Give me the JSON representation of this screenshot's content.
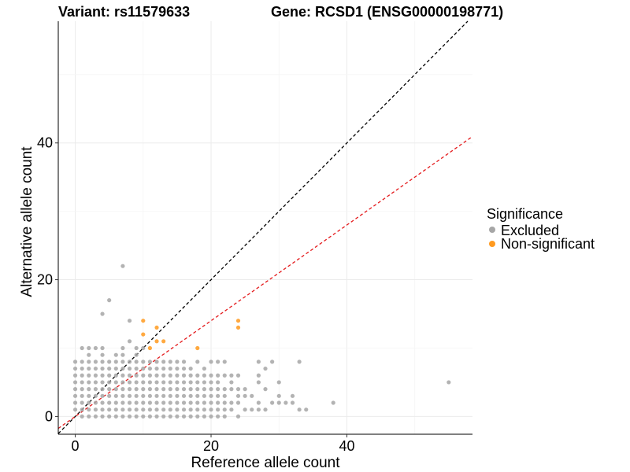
{
  "chart_data": {
    "type": "scatter",
    "title_left": "Variant: rs11579633",
    "title_right": "Gene: RCSD1 (ENSG00000198771)",
    "xlabel": "Reference allele count",
    "ylabel": "Alternative allele count",
    "xlim": [
      -2.5,
      58.5
    ],
    "ylim": [
      -2.6,
      57.8
    ],
    "x_ticks": [
      0,
      20,
      40
    ],
    "y_ticks": [
      0,
      20,
      40
    ],
    "grid": true,
    "legend_position": "right",
    "legend_title": "Significance",
    "reference_lines": [
      {
        "name": "identity",
        "slope": 1,
        "intercept": 0,
        "color": "#000000",
        "dash": "dashed"
      },
      {
        "name": "ratio",
        "slope": 0.7,
        "intercept": 0,
        "color": "#e41a1c",
        "dash": "dashed"
      }
    ],
    "series": [
      {
        "name": "Excluded",
        "color": "#a6a6a6",
        "points": [
          [
            0,
            1
          ],
          [
            0,
            2
          ],
          [
            0,
            3
          ],
          [
            0,
            4
          ],
          [
            0,
            5
          ],
          [
            0,
            6
          ],
          [
            0,
            7
          ],
          [
            0,
            8
          ],
          [
            1,
            0
          ],
          [
            1,
            1
          ],
          [
            1,
            2
          ],
          [
            1,
            3
          ],
          [
            1,
            4
          ],
          [
            1,
            5
          ],
          [
            1,
            6
          ],
          [
            1,
            7
          ],
          [
            1,
            8
          ],
          [
            1,
            10
          ],
          [
            2,
            0
          ],
          [
            2,
            1
          ],
          [
            2,
            2
          ],
          [
            2,
            3
          ],
          [
            2,
            4
          ],
          [
            2,
            5
          ],
          [
            2,
            6
          ],
          [
            2,
            7
          ],
          [
            2,
            8
          ],
          [
            2,
            9
          ],
          [
            2,
            10
          ],
          [
            3,
            0
          ],
          [
            3,
            1
          ],
          [
            3,
            2
          ],
          [
            3,
            3
          ],
          [
            3,
            4
          ],
          [
            3,
            5
          ],
          [
            3,
            6
          ],
          [
            3,
            7
          ],
          [
            3,
            8
          ],
          [
            3,
            10
          ],
          [
            4,
            0
          ],
          [
            4,
            1
          ],
          [
            4,
            2
          ],
          [
            4,
            3
          ],
          [
            4,
            4
          ],
          [
            4,
            5
          ],
          [
            4,
            6
          ],
          [
            4,
            7
          ],
          [
            4,
            8
          ],
          [
            4,
            9
          ],
          [
            4,
            10
          ],
          [
            4,
            15
          ],
          [
            5,
            0
          ],
          [
            5,
            1
          ],
          [
            5,
            2
          ],
          [
            5,
            3
          ],
          [
            5,
            4
          ],
          [
            5,
            5
          ],
          [
            5,
            6
          ],
          [
            5,
            7
          ],
          [
            5,
            8
          ],
          [
            5,
            17
          ],
          [
            6,
            0
          ],
          [
            6,
            1
          ],
          [
            6,
            2
          ],
          [
            6,
            3
          ],
          [
            6,
            4
          ],
          [
            6,
            5
          ],
          [
            6,
            6
          ],
          [
            6,
            7
          ],
          [
            6,
            8
          ],
          [
            6,
            9
          ],
          [
            7,
            0
          ],
          [
            7,
            1
          ],
          [
            7,
            2
          ],
          [
            7,
            3
          ],
          [
            7,
            4
          ],
          [
            7,
            5
          ],
          [
            7,
            6
          ],
          [
            7,
            7
          ],
          [
            7,
            8
          ],
          [
            7,
            9
          ],
          [
            7,
            10
          ],
          [
            7,
            22
          ],
          [
            8,
            0
          ],
          [
            8,
            1
          ],
          [
            8,
            2
          ],
          [
            8,
            3
          ],
          [
            8,
            4
          ],
          [
            8,
            5
          ],
          [
            8,
            6
          ],
          [
            8,
            7
          ],
          [
            8,
            8
          ],
          [
            8,
            11
          ],
          [
            8,
            14
          ],
          [
            9,
            0
          ],
          [
            9,
            1
          ],
          [
            9,
            2
          ],
          [
            9,
            3
          ],
          [
            9,
            4
          ],
          [
            9,
            5
          ],
          [
            9,
            6
          ],
          [
            9,
            7
          ],
          [
            9,
            8
          ],
          [
            9,
            9
          ],
          [
            9,
            10
          ],
          [
            10,
            0
          ],
          [
            10,
            1
          ],
          [
            10,
            2
          ],
          [
            10,
            3
          ],
          [
            10,
            4
          ],
          [
            10,
            5
          ],
          [
            10,
            6
          ],
          [
            10,
            7
          ],
          [
            10,
            8
          ],
          [
            10,
            10
          ],
          [
            11,
            0
          ],
          [
            11,
            1
          ],
          [
            11,
            2
          ],
          [
            11,
            3
          ],
          [
            11,
            4
          ],
          [
            11,
            5
          ],
          [
            11,
            6
          ],
          [
            11,
            7
          ],
          [
            11,
            8
          ],
          [
            12,
            0
          ],
          [
            12,
            1
          ],
          [
            12,
            2
          ],
          [
            12,
            3
          ],
          [
            12,
            4
          ],
          [
            12,
            5
          ],
          [
            12,
            6
          ],
          [
            12,
            7
          ],
          [
            12,
            8
          ],
          [
            13,
            0
          ],
          [
            13,
            1
          ],
          [
            13,
            2
          ],
          [
            13,
            3
          ],
          [
            13,
            4
          ],
          [
            13,
            5
          ],
          [
            13,
            6
          ],
          [
            13,
            7
          ],
          [
            13,
            8
          ],
          [
            14,
            0
          ],
          [
            14,
            1
          ],
          [
            14,
            2
          ],
          [
            14,
            3
          ],
          [
            14,
            4
          ],
          [
            14,
            5
          ],
          [
            14,
            6
          ],
          [
            14,
            7
          ],
          [
            14,
            8
          ],
          [
            15,
            0
          ],
          [
            15,
            1
          ],
          [
            15,
            2
          ],
          [
            15,
            3
          ],
          [
            15,
            4
          ],
          [
            15,
            5
          ],
          [
            15,
            6
          ],
          [
            15,
            7
          ],
          [
            15,
            8
          ],
          [
            16,
            0
          ],
          [
            16,
            1
          ],
          [
            16,
            2
          ],
          [
            16,
            3
          ],
          [
            16,
            4
          ],
          [
            16,
            5
          ],
          [
            16,
            6
          ],
          [
            16,
            7
          ],
          [
            16,
            8
          ],
          [
            17,
            0
          ],
          [
            17,
            1
          ],
          [
            17,
            2
          ],
          [
            17,
            3
          ],
          [
            17,
            4
          ],
          [
            17,
            5
          ],
          [
            17,
            6
          ],
          [
            17,
            7
          ],
          [
            18,
            0
          ],
          [
            18,
            1
          ],
          [
            18,
            2
          ],
          [
            18,
            3
          ],
          [
            18,
            4
          ],
          [
            18,
            5
          ],
          [
            18,
            6
          ],
          [
            18,
            8
          ],
          [
            19,
            0
          ],
          [
            19,
            1
          ],
          [
            19,
            2
          ],
          [
            19,
            3
          ],
          [
            19,
            4
          ],
          [
            19,
            5
          ],
          [
            19,
            6
          ],
          [
            19,
            7
          ],
          [
            20,
            0
          ],
          [
            20,
            1
          ],
          [
            20,
            2
          ],
          [
            20,
            3
          ],
          [
            20,
            4
          ],
          [
            20,
            5
          ],
          [
            20,
            6
          ],
          [
            20,
            8
          ],
          [
            21,
            0
          ],
          [
            21,
            1
          ],
          [
            21,
            2
          ],
          [
            21,
            3
          ],
          [
            21,
            4
          ],
          [
            21,
            5
          ],
          [
            21,
            6
          ],
          [
            21,
            8
          ],
          [
            22,
            0
          ],
          [
            22,
            1
          ],
          [
            22,
            2
          ],
          [
            22,
            3
          ],
          [
            22,
            4
          ],
          [
            22,
            6
          ],
          [
            22,
            8
          ],
          [
            23,
            1
          ],
          [
            23,
            2
          ],
          [
            23,
            4
          ],
          [
            23,
            5
          ],
          [
            23,
            6
          ],
          [
            24,
            0
          ],
          [
            24,
            2
          ],
          [
            24,
            3
          ],
          [
            24,
            4
          ],
          [
            24,
            6
          ],
          [
            25,
            1
          ],
          [
            25,
            3
          ],
          [
            25,
            4
          ],
          [
            26,
            1
          ],
          [
            26,
            3
          ],
          [
            27,
            1
          ],
          [
            27,
            2
          ],
          [
            27,
            5
          ],
          [
            27,
            6
          ],
          [
            27,
            8
          ],
          [
            28,
            1
          ],
          [
            28,
            4
          ],
          [
            28,
            7
          ],
          [
            29,
            2
          ],
          [
            29,
            8
          ],
          [
            30,
            2
          ],
          [
            30,
            3
          ],
          [
            30,
            5
          ],
          [
            31,
            2
          ],
          [
            32,
            2
          ],
          [
            32,
            3
          ],
          [
            33,
            1
          ],
          [
            33,
            8
          ],
          [
            34,
            1
          ],
          [
            38,
            2
          ],
          [
            55,
            5
          ]
        ]
      },
      {
        "name": "Non-significant",
        "color": "#ff9a1f",
        "points": [
          [
            10,
            14
          ],
          [
            10,
            12
          ],
          [
            11,
            10
          ],
          [
            12,
            13
          ],
          [
            12,
            11
          ],
          [
            13,
            11
          ],
          [
            18,
            10
          ],
          [
            24,
            14
          ],
          [
            24,
            13
          ]
        ]
      }
    ]
  }
}
